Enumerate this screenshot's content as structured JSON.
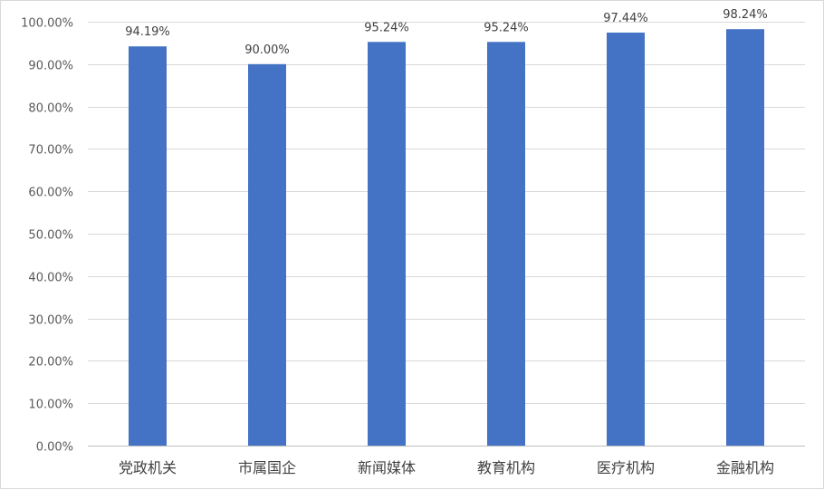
{
  "chart_data": {
    "type": "bar",
    "categories": [
      "党政机关",
      "市属国企",
      "新闻媒体",
      "教育机构",
      "医疗机构",
      "金融机构"
    ],
    "values": [
      94.19,
      90.0,
      95.24,
      95.24,
      97.44,
      98.24
    ],
    "data_labels": [
      "94.19%",
      "90.00%",
      "95.24%",
      "95.24%",
      "97.44%",
      "98.24%"
    ],
    "ylim": [
      0,
      100
    ],
    "y_ticks": [
      0,
      10,
      20,
      30,
      40,
      50,
      60,
      70,
      80,
      90,
      100
    ],
    "y_tick_labels": [
      "0.00%",
      "10.00%",
      "20.00%",
      "30.00%",
      "40.00%",
      "50.00%",
      "60.00%",
      "70.00%",
      "80.00%",
      "90.00%",
      "100.00%"
    ],
    "grid": true,
    "legend": "none",
    "bar_color": "#4472C4"
  }
}
